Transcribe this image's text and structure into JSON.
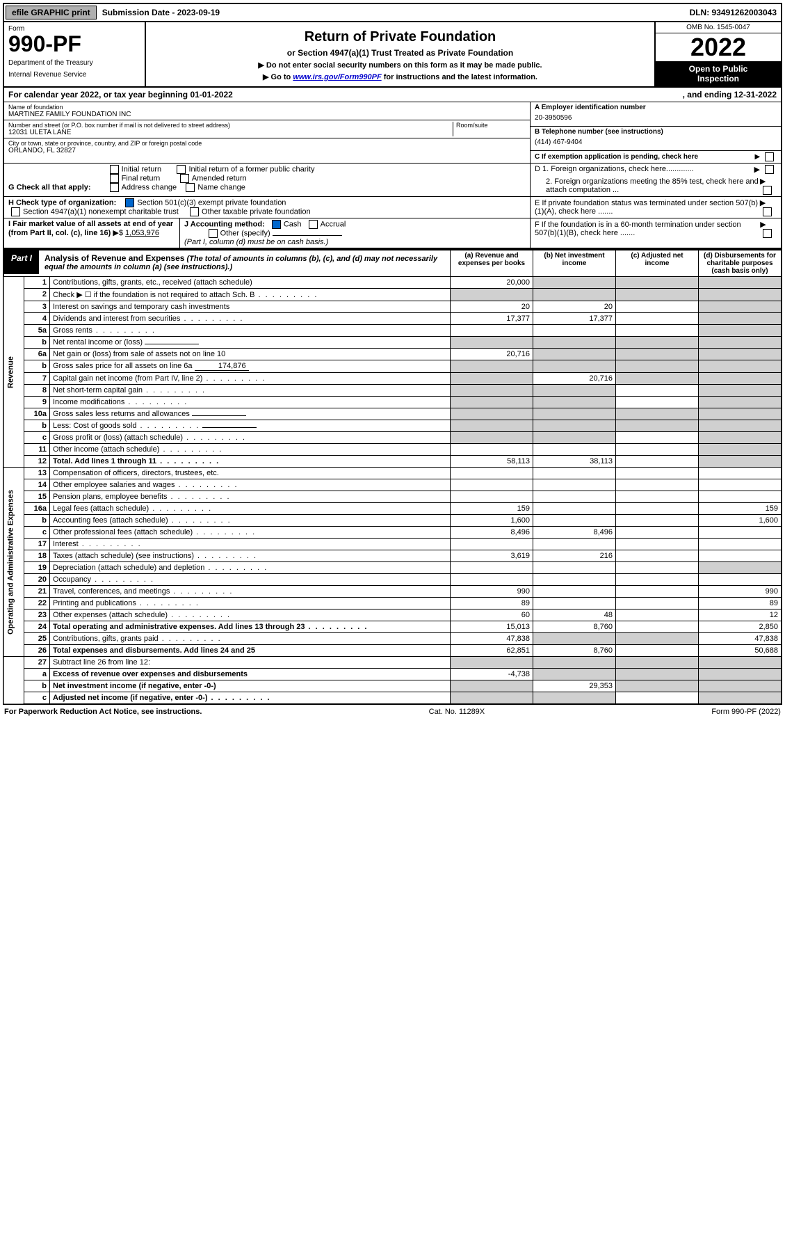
{
  "topbar": {
    "btn1": "efile GRAPHIC print",
    "sub_label": "Submission Date - 2023-09-19",
    "dln": "DLN: 93491262003043"
  },
  "header": {
    "form_label": "Form",
    "form_number": "990-PF",
    "dept": "Department of the Treasury",
    "irs": "Internal Revenue Service",
    "title": "Return of Private Foundation",
    "subtitle": "or Section 4947(a)(1) Trust Treated as Private Foundation",
    "instr1": "▶ Do not enter social security numbers on this form as it may be made public.",
    "instr2_pre": "▶ Go to ",
    "instr2_link": "www.irs.gov/Form990PF",
    "instr2_post": " for instructions and the latest information.",
    "omb": "OMB No. 1545-0047",
    "year": "2022",
    "otp1": "Open to Public",
    "otp2": "Inspection"
  },
  "cal_year": {
    "left": "For calendar year 2022, or tax year beginning 01-01-2022",
    "right": ", and ending 12-31-2022"
  },
  "entity": {
    "name_label": "Name of foundation",
    "name": "MARTINEZ FAMILY FOUNDATION INC",
    "addr_label": "Number and street (or P.O. box number if mail is not delivered to street address)",
    "addr": "12031 ULETA LANE",
    "room_label": "Room/suite",
    "city_label": "City or town, state or province, country, and ZIP or foreign postal code",
    "city": "ORLANDO, FL  32827",
    "ein_label": "A Employer identification number",
    "ein": "20-3950596",
    "phone_label": "B Telephone number (see instructions)",
    "phone": "(414) 467-9404",
    "c_label": "C If exemption application is pending, check here"
  },
  "checkG": {
    "label": "G Check all that apply:",
    "opts": [
      "Initial return",
      "Final return",
      "Address change",
      "Initial return of a former public charity",
      "Amended return",
      "Name change"
    ]
  },
  "checkH": {
    "label": "H Check type of organization:",
    "opt1": "Section 501(c)(3) exempt private foundation",
    "opt2": "Section 4947(a)(1) nonexempt charitable trust",
    "opt3": "Other taxable private foundation"
  },
  "checkI": {
    "label": "I Fair market value of all assets at end of year (from Part II, col. (c), line 16)",
    "value": "1,053,976"
  },
  "checkJ": {
    "label": "J Accounting method:",
    "cash": "Cash",
    "accrual": "Accrual",
    "other": "Other (specify)",
    "note": "(Part I, column (d) must be on cash basis.)"
  },
  "checkD": {
    "d1": "D 1. Foreign organizations, check here.............",
    "d2": "2. Foreign organizations meeting the 85% test, check here and attach computation ...",
    "e": "E  If private foundation status was terminated under section 507(b)(1)(A), check here .......",
    "f": "F  If the foundation is in a 60-month termination under section 507(b)(1)(B), check here ......."
  },
  "part1": {
    "label": "Part I",
    "title": "Analysis of Revenue and Expenses",
    "note": "(The total of amounts in columns (b), (c), and (d) may not necessarily equal the amounts in column (a) (see instructions).)",
    "col_a": "(a) Revenue and expenses per books",
    "col_b": "(b) Net investment income",
    "col_c": "(c) Adjusted net income",
    "col_d": "(d) Disbursements for charitable purposes (cash basis only)"
  },
  "rows": [
    {
      "n": "1",
      "d": "Contributions, gifts, grants, etc., received (attach schedule)",
      "a": "20,000",
      "ga": false,
      "gb": true,
      "gc": true,
      "gd": true
    },
    {
      "n": "2",
      "d": "Check ▶ ☐ if the foundation is not required to attach Sch. B",
      "ga": true,
      "gb": true,
      "gc": true,
      "gd": true,
      "dots": true
    },
    {
      "n": "3",
      "d": "Interest on savings and temporary cash investments",
      "a": "20",
      "b": "20",
      "gd": true
    },
    {
      "n": "4",
      "d": "Dividends and interest from securities",
      "a": "17,377",
      "b": "17,377",
      "gd": true,
      "dots": true
    },
    {
      "n": "5a",
      "d": "Gross rents",
      "gd": true,
      "dots": true
    },
    {
      "n": "b",
      "d": "Net rental income or (loss)",
      "ga": true,
      "gb": true,
      "gc": true,
      "gd": true,
      "inline": true
    },
    {
      "n": "6a",
      "d": "Net gain or (loss) from sale of assets not on line 10",
      "a": "20,716",
      "gb": true,
      "gc": true,
      "gd": true
    },
    {
      "n": "b",
      "d": "Gross sales price for all assets on line 6a",
      "ga": true,
      "gb": true,
      "gc": true,
      "gd": true,
      "inline": true,
      "inline_val": "174,876"
    },
    {
      "n": "7",
      "d": "Capital gain net income (from Part IV, line 2)",
      "ga": true,
      "b": "20,716",
      "gc": true,
      "gd": true,
      "dots": true
    },
    {
      "n": "8",
      "d": "Net short-term capital gain",
      "ga": true,
      "gb": true,
      "gd": true,
      "dots": true
    },
    {
      "n": "9",
      "d": "Income modifications",
      "ga": true,
      "gb": true,
      "gd": true,
      "dots": true
    },
    {
      "n": "10a",
      "d": "Gross sales less returns and allowances",
      "ga": true,
      "gb": true,
      "gc": true,
      "gd": true,
      "inline": true
    },
    {
      "n": "b",
      "d": "Less: Cost of goods sold",
      "ga": true,
      "gb": true,
      "gc": true,
      "gd": true,
      "inline": true,
      "dots": true
    },
    {
      "n": "c",
      "d": "Gross profit or (loss) (attach schedule)",
      "ga": true,
      "gb": true,
      "gd": true,
      "dots": true
    },
    {
      "n": "11",
      "d": "Other income (attach schedule)",
      "gd": true,
      "dots": true
    },
    {
      "n": "12",
      "d": "Total. Add lines 1 through 11",
      "a": "58,113",
      "b": "38,113",
      "gd": true,
      "bold": true,
      "dots": true
    }
  ],
  "exp_rows": [
    {
      "n": "13",
      "d": "Compensation of officers, directors, trustees, etc."
    },
    {
      "n": "14",
      "d": "Other employee salaries and wages",
      "dots": true
    },
    {
      "n": "15",
      "d": "Pension plans, employee benefits",
      "dots": true
    },
    {
      "n": "16a",
      "d": "Legal fees (attach schedule)",
      "a": "159",
      "dd": "159",
      "dots": true
    },
    {
      "n": "b",
      "d": "Accounting fees (attach schedule)",
      "a": "1,600",
      "dd": "1,600",
      "dots": true
    },
    {
      "n": "c",
      "d": "Other professional fees (attach schedule)",
      "a": "8,496",
      "b": "8,496",
      "dots": true
    },
    {
      "n": "17",
      "d": "Interest",
      "dots": true
    },
    {
      "n": "18",
      "d": "Taxes (attach schedule) (see instructions)",
      "a": "3,619",
      "b": "216",
      "dots": true
    },
    {
      "n": "19",
      "d": "Depreciation (attach schedule) and depletion",
      "gd": true,
      "dots": true
    },
    {
      "n": "20",
      "d": "Occupancy",
      "dots": true
    },
    {
      "n": "21",
      "d": "Travel, conferences, and meetings",
      "a": "990",
      "dd": "990",
      "dots": true
    },
    {
      "n": "22",
      "d": "Printing and publications",
      "a": "89",
      "dd": "89",
      "dots": true
    },
    {
      "n": "23",
      "d": "Other expenses (attach schedule)",
      "a": "60",
      "b": "48",
      "dd": "12",
      "dots": true
    },
    {
      "n": "24",
      "d": "Total operating and administrative expenses. Add lines 13 through 23",
      "a": "15,013",
      "b": "8,760",
      "dd": "2,850",
      "bold": true,
      "dots": true
    },
    {
      "n": "25",
      "d": "Contributions, gifts, grants paid",
      "a": "47,838",
      "gb": true,
      "gc": true,
      "dd": "47,838",
      "dots": true
    },
    {
      "n": "26",
      "d": "Total expenses and disbursements. Add lines 24 and 25",
      "a": "62,851",
      "b": "8,760",
      "dd": "50,688",
      "bold": true
    }
  ],
  "net_rows": [
    {
      "n": "27",
      "d": "Subtract line 26 from line 12:",
      "ga": true,
      "gb": true,
      "gc": true,
      "gd": true
    },
    {
      "n": "a",
      "d": "Excess of revenue over expenses and disbursements",
      "a": "-4,738",
      "gb": true,
      "gc": true,
      "gd": true,
      "bold": true
    },
    {
      "n": "b",
      "d": "Net investment income (if negative, enter -0-)",
      "ga": true,
      "b": "29,353",
      "gc": true,
      "gd": true,
      "bold": true
    },
    {
      "n": "c",
      "d": "Adjusted net income (if negative, enter -0-)",
      "ga": true,
      "gb": true,
      "gd": true,
      "bold": true,
      "dots": true
    }
  ],
  "section_labels": {
    "revenue": "Revenue",
    "expenses": "Operating and Administrative Expenses"
  },
  "footer": {
    "left": "For Paperwork Reduction Act Notice, see instructions.",
    "mid": "Cat. No. 11289X",
    "right": "Form 990-PF (2022)"
  }
}
